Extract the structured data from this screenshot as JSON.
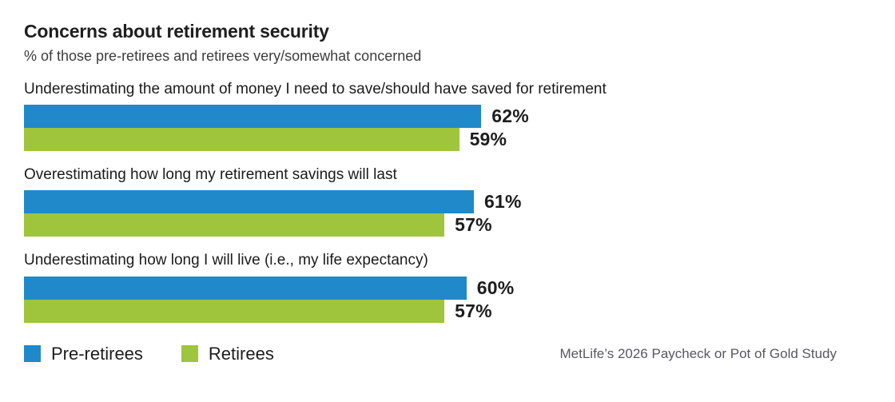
{
  "header": {
    "title": "Concerns about retirement security",
    "subtitle": "% of those pre-retirees and retirees very/somewhat concerned"
  },
  "chart_data": {
    "type": "bar",
    "orientation": "horizontal",
    "title": "Concerns about retirement security",
    "subtitle": "% of those pre-retirees and retirees very/somewhat concerned",
    "categories": [
      "Underestimating the amount of money I need to save/should have saved for retirement",
      "Overestimating how long my retirement savings will last",
      "Underestimating how long I will live (i.e., my life expectancy)"
    ],
    "series": [
      {
        "name": "Pre-retirees",
        "color": "#1F89C9",
        "values": [
          62,
          61,
          60
        ]
      },
      {
        "name": "Retirees",
        "color": "#9EC53B",
        "values": [
          59,
          57,
          57
        ]
      }
    ],
    "value_suffix": "%",
    "value_labels_shown": true,
    "axis_shown": false,
    "grid": false,
    "xlim": [
      0,
      100
    ],
    "legend_position": "bottom-left"
  },
  "legend": {
    "items": [
      {
        "label": "Pre-retirees",
        "color": "#1F89C9"
      },
      {
        "label": "Retirees",
        "color": "#9EC53B"
      }
    ]
  },
  "footer": {
    "source": "MetLife’s 2026 Paycheck or Pot of Gold Study"
  },
  "colors": {
    "pre_retirees_blue": "#1F89C9",
    "retirees_green": "#9EC53B",
    "text_dark": "#1d1d1d",
    "text_subtitle": "#3c3c3c",
    "text_source": "#56585c",
    "background": "#ffffff"
  }
}
